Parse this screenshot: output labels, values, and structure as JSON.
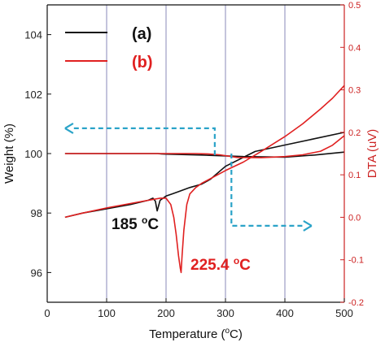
{
  "chart_data": {
    "type": "line",
    "xlabel": "Temperature (",
    "xlabel_unit": "C)",
    "xlabel_degree": "o",
    "ylabel_left": "Weight (%)",
    "ylabel_right": "DTA (uV)",
    "xlim": [
      0,
      500
    ],
    "ylim_left": [
      95,
      105
    ],
    "ylim_right": [
      -0.2,
      0.5
    ],
    "x_ticks": [
      "0",
      "100",
      "200",
      "300",
      "400",
      "500"
    ],
    "y_left_ticks": [
      "96",
      "98",
      "100",
      "102",
      "104"
    ],
    "y_right_ticks": [
      "-0.2",
      "-0.1",
      "0.0",
      "0.1",
      "0.2",
      "0.3",
      "0.4",
      "0.5"
    ],
    "vertical_grid_at": [
      100,
      200,
      300,
      400
    ],
    "legend": {
      "placement": "top-left",
      "entries": [
        {
          "label": "(a)",
          "color": "#111111"
        },
        {
          "label": "(b)",
          "color": "#e02020"
        }
      ]
    },
    "annotations": [
      {
        "text": "185 ",
        "sup": "o",
        "unit": "C",
        "color": "#111111",
        "x": 185,
        "y_left": 97.45
      },
      {
        "text": "225.4 ",
        "sup": "o",
        "unit": "C",
        "color": "#e02020",
        "x": 225.4,
        "y_left": 95.9
      }
    ],
    "colors": {
      "a": "#111111",
      "b": "#e02020",
      "right_axis": "#cc2222",
      "grid": "#8a8ab8",
      "arrow": "#2aa3c8"
    },
    "series": [
      {
        "name": "(a)",
        "axis": "left",
        "x": [
          30,
          60,
          100,
          140,
          170,
          178,
          183,
          186,
          192,
          200,
          260,
          330,
          400,
          450,
          500
        ],
        "y": [
          100,
          100,
          100,
          100,
          100,
          100,
          100,
          100,
          99.99,
          99.98,
          99.95,
          99.9,
          99.88,
          99.95,
          100.05
        ]
      },
      {
        "name": "(a)",
        "axis": "right",
        "x": [
          30,
          60,
          100,
          140,
          170,
          178,
          182,
          185,
          190,
          200,
          210,
          220,
          240,
          260,
          265,
          275,
          300,
          350,
          400,
          450,
          500
        ],
        "y": [
          0.0,
          0.01,
          0.02,
          0.03,
          0.04,
          0.045,
          0.038,
          0.015,
          0.04,
          0.05,
          0.055,
          0.06,
          0.07,
          0.078,
          0.082,
          0.09,
          0.12,
          0.155,
          0.17,
          0.185,
          0.2
        ]
      },
      {
        "name": "(b)",
        "axis": "left",
        "x": [
          30,
          100,
          200,
          250,
          270,
          290,
          320,
          360,
          400,
          430,
          460,
          480,
          500
        ],
        "y": [
          100,
          100,
          100,
          100,
          99.99,
          99.96,
          99.87,
          99.86,
          99.9,
          99.96,
          100.08,
          100.28,
          100.6
        ]
      },
      {
        "name": "(b)",
        "axis": "right",
        "x": [
          30,
          60,
          100,
          150,
          190,
          200,
          208,
          213,
          217,
          221,
          224,
          225.4,
          227,
          230,
          235,
          240,
          250,
          260,
          280,
          300,
          330,
          360,
          400,
          430,
          460,
          480,
          500
        ],
        "y": [
          0.0,
          0.01,
          0.022,
          0.035,
          0.045,
          0.045,
          0.03,
          0.0,
          -0.04,
          -0.09,
          -0.12,
          -0.13,
          -0.09,
          -0.03,
          0.03,
          0.055,
          0.07,
          0.08,
          0.095,
          0.11,
          0.13,
          0.155,
          0.19,
          0.22,
          0.255,
          0.28,
          0.31
        ]
      }
    ],
    "arrows": [
      {
        "direction": "left",
        "axis": "left",
        "points_x": [
          282,
          282,
          30
        ],
        "points_y": [
          100.85,
          100.85,
          100.85
        ],
        "start_x": 282,
        "start_y": 99.95
      },
      {
        "direction": "right",
        "axis": "right",
        "points_x": [
          310,
          310,
          445
        ],
        "start_y": 0.15,
        "end_y": -0.02
      }
    ]
  }
}
